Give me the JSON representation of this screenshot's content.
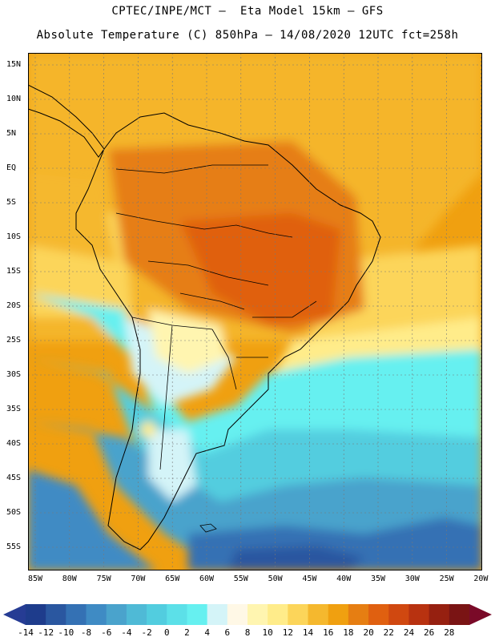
{
  "header": {
    "line1": "CPTEC/INPE/MCT –  Eta Model 15km – GFS",
    "line2": "Absolute Temperature (C) 850hPa – 14/08/2020 12UTC fct=258h"
  },
  "map": {
    "lat_labels": [
      "15N",
      "10N",
      "5N",
      "EQ",
      "5S",
      "10S",
      "15S",
      "20S",
      "25S",
      "30S",
      "35S",
      "40S",
      "45S",
      "50S",
      "55S"
    ],
    "lon_labels": [
      "85W",
      "80W",
      "75W",
      "70W",
      "65W",
      "60W",
      "55W",
      "50W",
      "45W",
      "40W",
      "35W",
      "30W",
      "25W",
      "20W"
    ],
    "lat_range": [
      16,
      -58
    ],
    "lon_range": [
      -86,
      -20
    ],
    "gridlines": true
  },
  "colorbar": {
    "labels": [
      "-14",
      "-12",
      "-10",
      "-8",
      "-6",
      "-4",
      "-2",
      "0",
      "2",
      "4",
      "6",
      "8",
      "10",
      "12",
      "14",
      "16",
      "18",
      "20",
      "22",
      "24",
      "26",
      "28"
    ],
    "colors": [
      "#1e3c8c",
      "#2a57a0",
      "#3471b4",
      "#3f8bc4",
      "#4aa3cc",
      "#4fbad6",
      "#52cddf",
      "#5ce0e8",
      "#66f0f0",
      "#d4f4f8",
      "#fff8e6",
      "#fff5b0",
      "#ffec8a",
      "#fcd55a",
      "#f5b82e",
      "#f0a010",
      "#e67e12",
      "#e06010",
      "#d04810",
      "#b83210",
      "#962010",
      "#7a1414"
    ],
    "under_color": "#263c94",
    "over_color": "#7a0a28"
  }
}
